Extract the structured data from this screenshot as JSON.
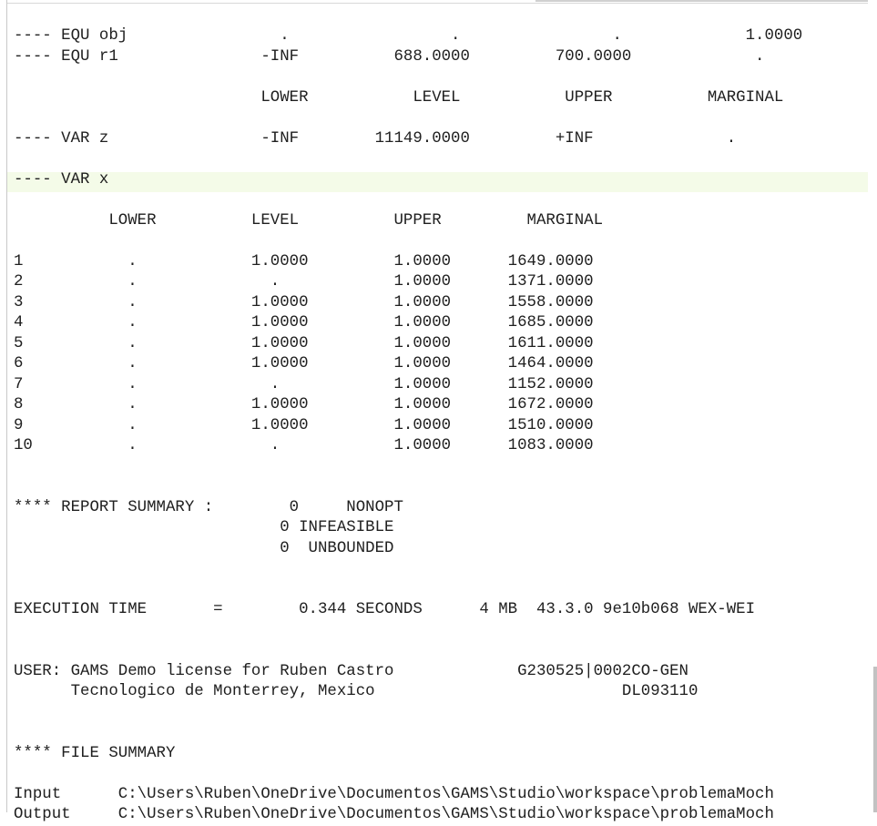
{
  "lines": [
    "---- EQU obj                .                 .                .             1.0000",
    "---- EQU r1               -INF          688.0000         700.0000             .",
    "",
    "                          LOWER           LEVEL           UPPER          MARGINAL",
    "",
    "---- VAR z                -INF        11149.0000         +INF              .",
    "",
    "---- VAR x",
    "",
    "          LOWER          LEVEL          UPPER         MARGINAL",
    "",
    "1           .            1.0000         1.0000      1649.0000",
    "2           .              .            1.0000      1371.0000",
    "3           .            1.0000         1.0000      1558.0000",
    "4           .            1.0000         1.0000      1685.0000",
    "5           .            1.0000         1.0000      1611.0000",
    "6           .            1.0000         1.0000      1464.0000",
    "7           .              .            1.0000      1152.0000",
    "8           .            1.0000         1.0000      1672.0000",
    "9           .            1.0000         1.0000      1510.0000",
    "10          .              .            1.0000      1083.0000",
    "",
    "",
    "**** REPORT SUMMARY :        0     NONOPT",
    "                            0 INFEASIBLE",
    "                            0  UNBOUNDED",
    "",
    "",
    "EXECUTION TIME       =        0.344 SECONDS      4 MB  43.3.0 9e10b068 WEX-WEI",
    "",
    "",
    "USER: GAMS Demo license for Ruben Castro             G230525|0002CO-GEN",
    "      Tecnologico de Monterrey, Mexico                          DL093110",
    "",
    "",
    "**** FILE SUMMARY",
    "",
    "Input      C:\\Users\\Ruben\\OneDrive\\Documentos\\GAMS\\Studio\\workspace\\problemaMoch",
    "Output     C:\\Users\\Ruben\\OneDrive\\Documentos\\GAMS\\Studio\\workspace\\problemaMoch"
  ]
}
